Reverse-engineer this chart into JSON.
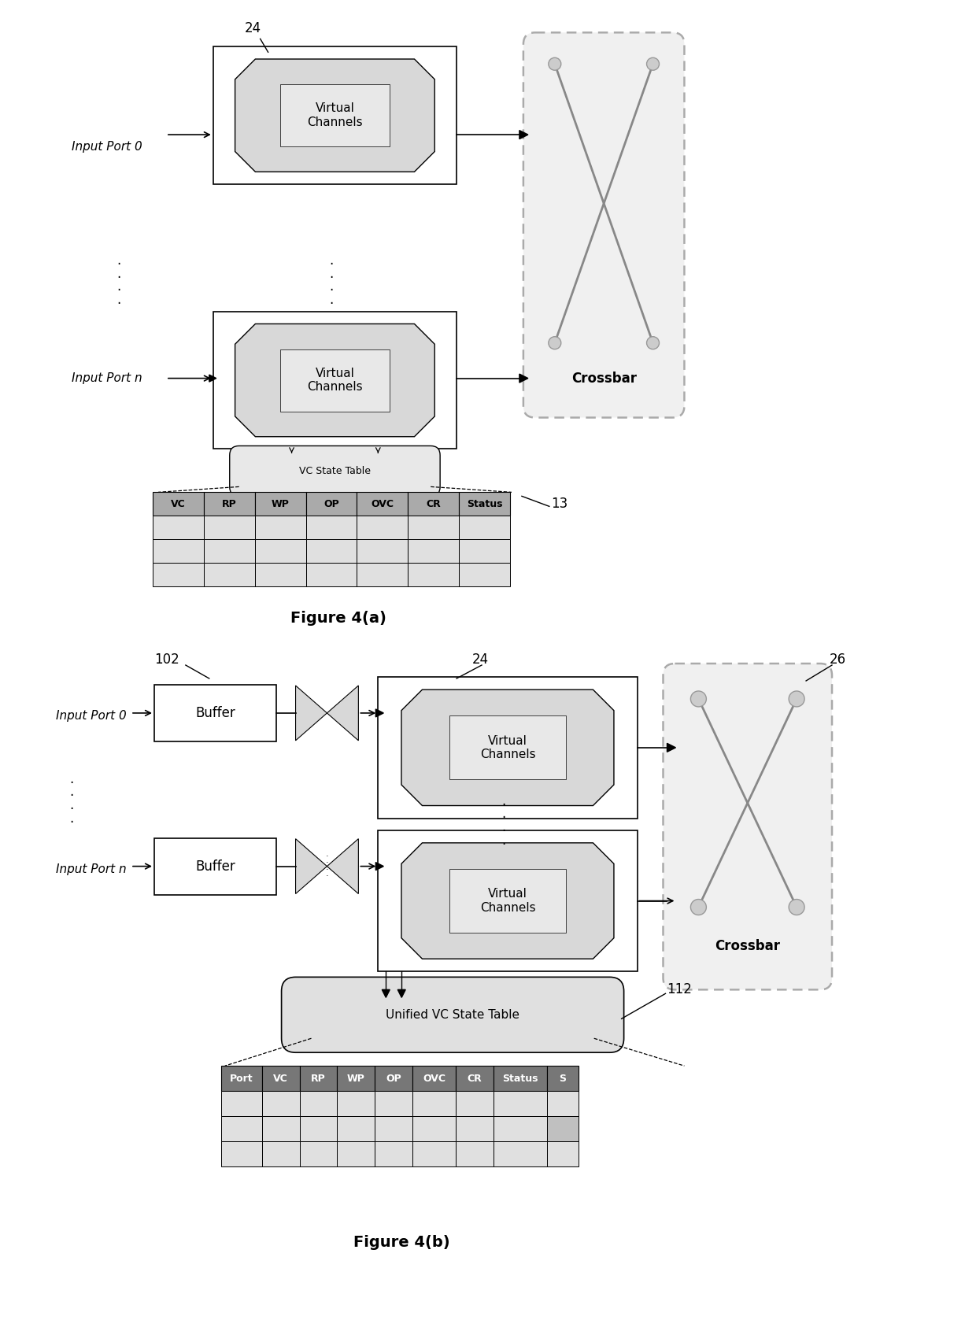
{
  "fig_width": 12.4,
  "fig_height": 17.05,
  "bg_color": "#ffffff",
  "title_a": "Figure 4(a)",
  "title_b": "Figure 4(b)",
  "table_a_headers": [
    "VC",
    "RP",
    "WP",
    "OP",
    "OVC",
    "CR",
    "Status"
  ],
  "table_b_headers": [
    "Port",
    "VC",
    "RP",
    "WP",
    "OP",
    "OVC",
    "CR",
    "Status",
    "S"
  ],
  "label_color": "#000000",
  "crossbar_edge": "#999999",
  "crossbar_fill": "#eeeeee",
  "vc_outer_fill": "#ffffff",
  "vc_inner_fill": "#d8d8d8",
  "table_header_fill_a": "#aaaaaa",
  "table_header_fill_b": "#777777",
  "table_data_fill": "#e0e0e0",
  "table_data_fill2": "#c8c8c8",
  "rounded_box_fill": "#e8e8e8",
  "buffer_fill": "#ffffff"
}
